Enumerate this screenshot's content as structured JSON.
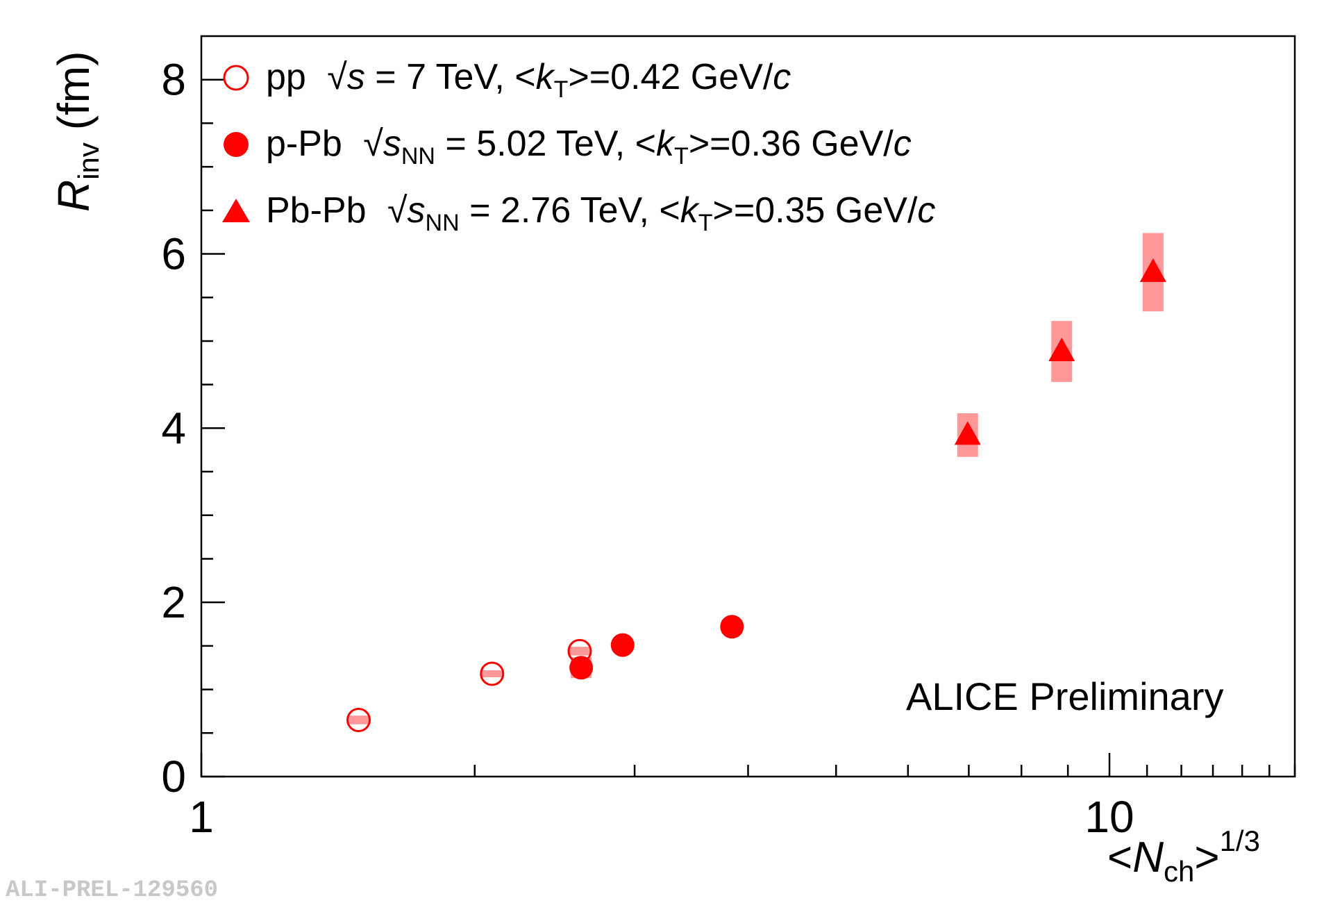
{
  "chart_data": {
    "type": "scatter",
    "xscale": "log",
    "xlim": [
      1,
      16
    ],
    "ylim": [
      0,
      8.5
    ],
    "xticks": [
      {
        "value": 1,
        "label": "1"
      },
      {
        "value": 10,
        "label": "10"
      }
    ],
    "yticks": [
      {
        "value": 0,
        "label": "0"
      },
      {
        "value": 2,
        "label": "2"
      },
      {
        "value": 4,
        "label": "4"
      },
      {
        "value": 6,
        "label": "6"
      },
      {
        "value": 8,
        "label": "8"
      }
    ],
    "ylabel": {
      "main": "R",
      "sub": "inv",
      "unit": " (fm)"
    },
    "xlabel": {
      "open": "<",
      "main": "N",
      "sub": "ch",
      "close": ">",
      "sup": "1/3"
    },
    "annotation": "ALICE Preliminary",
    "watermark": "ALI-PREL-129560",
    "colors": {
      "marker": "#ff0000",
      "systematic": "#ff9999"
    },
    "series": [
      {
        "name": "pp",
        "marker": "open-circle",
        "legend": {
          "sys": "pp",
          "sqrt": "s",
          "sub": "",
          "energy": " = 7 TeV, <",
          "k": "k",
          "ksub": "T",
          "tail": ">=0.42 GeV/",
          "c": "c"
        },
        "points": [
          {
            "x": 1.49,
            "y": 0.65,
            "sys": 0.05
          },
          {
            "x": 2.09,
            "y": 1.18,
            "sys": 0.04
          },
          {
            "x": 2.61,
            "y": 1.44,
            "sys": 0.05
          }
        ]
      },
      {
        "name": "p-Pb",
        "marker": "filled-circle",
        "legend": {
          "sys": "p-Pb",
          "sqrt": "s",
          "sub": "NN",
          "energy": " = 5.02 TeV, <",
          "k": "k",
          "ksub": "T",
          "tail": ">=0.36 GeV/",
          "c": "c"
        },
        "points": [
          {
            "x": 2.62,
            "y": 1.25,
            "sys": 0.12
          },
          {
            "x": 2.91,
            "y": 1.51,
            "sys": 0.07
          },
          {
            "x": 3.84,
            "y": 1.72,
            "sys": 0.08
          }
        ]
      },
      {
        "name": "Pb-Pb",
        "marker": "filled-triangle",
        "legend": {
          "sys": "Pb-Pb",
          "sqrt": "s",
          "sub": "NN",
          "energy": " = 2.76 TeV, <",
          "k": "k",
          "ksub": "T",
          "tail": ">=0.35 GeV/",
          "c": "c"
        },
        "points": [
          {
            "x": 6.98,
            "y": 3.92,
            "sys": 0.25
          },
          {
            "x": 8.86,
            "y": 4.88,
            "sys": 0.35
          },
          {
            "x": 11.17,
            "y": 5.79,
            "sys": 0.45
          }
        ]
      }
    ]
  }
}
